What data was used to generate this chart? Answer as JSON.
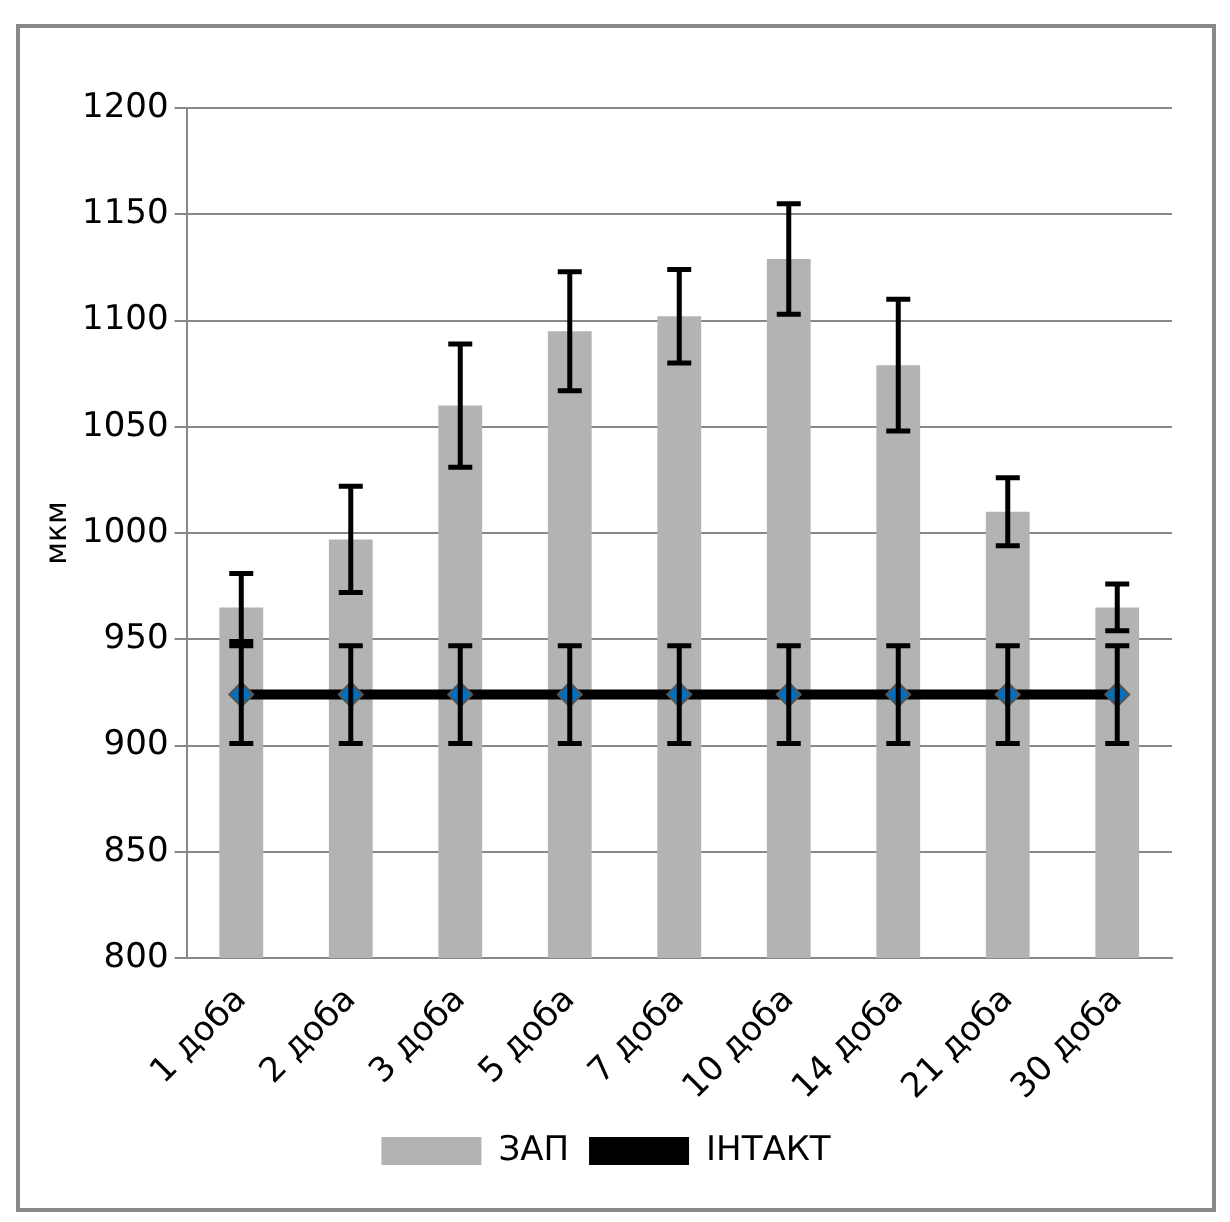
{
  "chart_data": {
    "type": "bar",
    "ylabel": "мкм",
    "categories": [
      "1 доба",
      "2 доба",
      "3 доба",
      "5 доба",
      "7 доба",
      "10 доба",
      "14 доба",
      "21 доба",
      "30 доба"
    ],
    "series": [
      {
        "name": "ЗАП",
        "color": "#b3b3b3",
        "values": [
          965,
          997,
          1060,
          1095,
          1102,
          1129,
          1079,
          1010,
          965
        ],
        "errors": [
          16,
          25,
          29,
          28,
          22,
          26,
          31,
          16,
          11
        ]
      },
      {
        "name": "ІНТАКТ",
        "type": "line",
        "color": "#000000",
        "marker": "diamond",
        "values": [
          924,
          924,
          924,
          924,
          924,
          924,
          924,
          924,
          924
        ],
        "errors": [
          23,
          23,
          23,
          23,
          23,
          23,
          23,
          23,
          23
        ]
      }
    ],
    "ylim": [
      800,
      1200
    ],
    "yticks": [
      800,
      850,
      900,
      950,
      1000,
      1050,
      1100,
      1150,
      1200
    ],
    "grid": "y",
    "legend": "bottom"
  }
}
